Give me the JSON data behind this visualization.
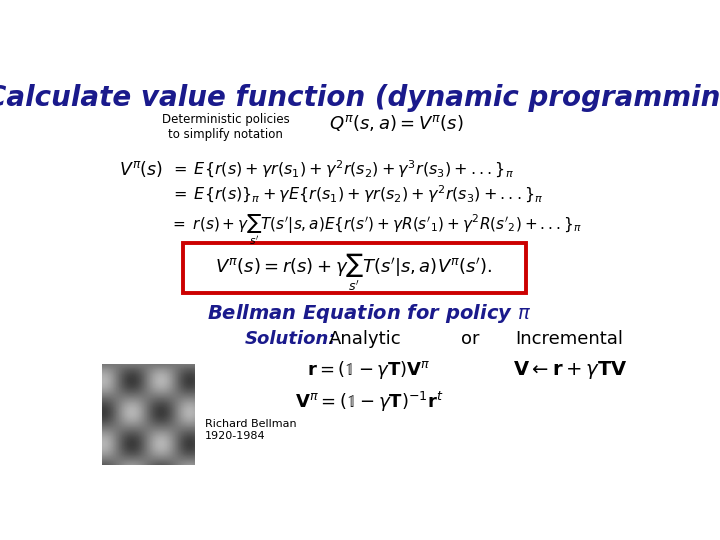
{
  "title": "Calculate value function (dynamic programming)",
  "title_color": "#1a1a8c",
  "title_fontsize": 20,
  "bg_color": "#ffffff",
  "det_policy_label": "Deterministic policies\nto simplify notation",
  "det_policy_eq": "$Q^{\\pi}(s,a) = V^{\\pi}(s)$",
  "line1": "$V^{\\pi}(s)$",
  "eq1": "$= \\; E\\{r(s) + \\gamma r(s_1) + \\gamma^2 r(s_2) + \\gamma^3 r(s_3) + ...\\}_{\\pi}$",
  "eq2": "$= \\; E\\{r(s)\\}_{\\pi} + \\gamma E\\{r(s_1) + \\gamma r(s_2) + \\gamma^2 r(s_3) + ...\\}_{\\pi}$",
  "eq3": "$= \\; r(s) + \\gamma \\sum_{s'} T(s'|s,a) E\\{r(s') + \\gamma R(s'_1) + \\gamma^2 R(s'_2) + ...\\}_{\\pi}$",
  "boxed_eq": "$V^{\\pi}(s) = r(s) + \\gamma \\sum_{s'} T(s'|s,a) V^{\\pi}(s').$",
  "bellman_label": "Bellman Equation for policy $\\pi$",
  "bellman_color": "#1a1a8c",
  "solution_label": "Solution:",
  "solution_color": "#1a1a8c",
  "analytic_label": "Analytic",
  "or_label": "or",
  "incremental_label": "Incremental",
  "analytic_eq": "$\\mathbf{r} = (\\mathbb{1} - \\gamma \\mathbf{T})\\mathbf{V}^{\\pi}$",
  "analytic_eq2": "$\\mathbf{V}^{\\pi} = (\\mathbb{1} - \\gamma \\mathbf{T})^{-1}\\mathbf{r}^{t}$",
  "incremental_eq": "$\\mathbf{V} \\leftarrow \\mathbf{r} + \\gamma \\mathbf{TV}$",
  "richard_label": "Richard Bellman\n1920-1984",
  "box_color": "#cc0000",
  "text_color": "#000000",
  "photo_color": "#999999"
}
